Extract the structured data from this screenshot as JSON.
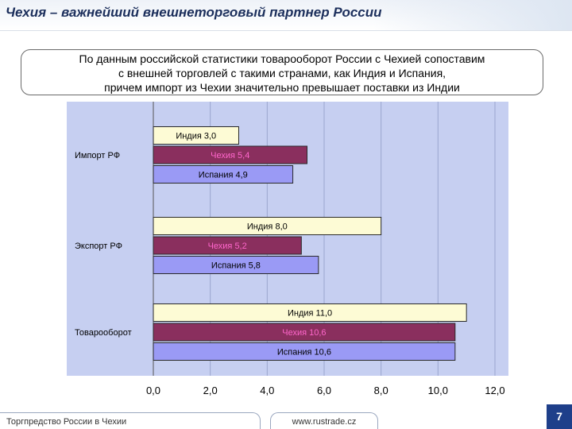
{
  "header": {
    "title": "Чехия – важнейший внешнеторговый партнер России"
  },
  "callout": {
    "lines": [
      "По данным российской статистики товарооборот России с Чехией сопоставим",
      "с внешней торговлей с такими странами, как Индия и Испания,",
      "причем импорт из Чехии значительно превышает поставки из Индии"
    ]
  },
  "chart_data": {
    "type": "bar",
    "orientation": "horizontal",
    "categories": [
      "Импорт РФ",
      "Экспорт РФ",
      "Товарооборот"
    ],
    "series": [
      {
        "name": "Индия",
        "values": [
          3.0,
          8.0,
          11.0
        ],
        "labels": [
          "Индия 3,0",
          "Индия 8,0",
          "Индия 11,0"
        ],
        "color": "#fdfbd5"
      },
      {
        "name": "Чехия",
        "values": [
          5.4,
          5.2,
          10.6
        ],
        "labels": [
          "Чехия 5,4",
          "Чехия 5,2",
          "Чехия 10,6"
        ],
        "color": "#8a2f5e"
      },
      {
        "name": "Испания",
        "values": [
          4.9,
          5.8,
          10.6
        ],
        "labels": [
          "Испания 4,9",
          "Испания 5,8",
          "Испания 10,6"
        ],
        "color": "#9a9af5"
      }
    ],
    "xlim": [
      0,
      12
    ],
    "ticks": [
      "0,0",
      "2,0",
      "4,0",
      "6,0",
      "8,0",
      "10,0",
      "12,0"
    ],
    "grid": true,
    "legend": "none"
  },
  "footer": {
    "left": "Торгпредство России в Чехии",
    "middle": "www.rustrade.cz",
    "page": "7"
  }
}
